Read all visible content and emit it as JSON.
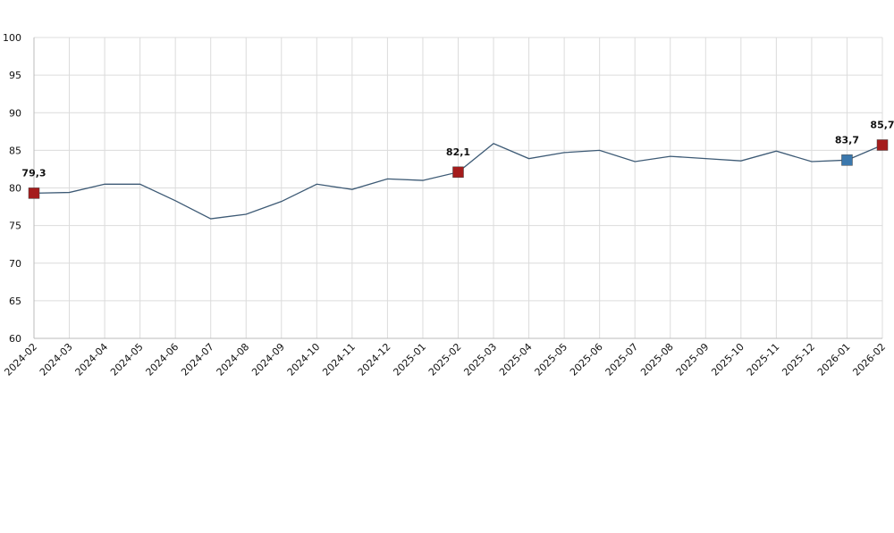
{
  "chart_data": {
    "type": "line",
    "categories": [
      "2024-02",
      "2024-03",
      "2024-04",
      "2024-05",
      "2024-06",
      "2024-07",
      "2024-08",
      "2024-09",
      "2024-10",
      "2024-11",
      "2024-12",
      "2025-01",
      "2025-02",
      "2025-03",
      "2025-04",
      "2025-05",
      "2025-06",
      "2025-07",
      "2025-08",
      "2025-09",
      "2025-10",
      "2025-11",
      "2025-12",
      "2026-01",
      "2026-02"
    ],
    "series": [
      {
        "color": "#3d5a75",
        "values": [
          79.3,
          79.4,
          80.5,
          80.5,
          78.3,
          75.9,
          76.5,
          78.2,
          80.5,
          79.8,
          81.2,
          81.0,
          82.1,
          85.9,
          83.9,
          84.7,
          85.0,
          83.5,
          84.2,
          83.9,
          83.6,
          84.9,
          83.5,
          83.7,
          85.7
        ],
        "value_labels": [
          "79,3",
          null,
          null,
          null,
          null,
          null,
          null,
          null,
          null,
          null,
          null,
          null,
          "82,1",
          null,
          null,
          null,
          null,
          null,
          null,
          null,
          null,
          null,
          null,
          "83,7",
          "85,7"
        ],
        "marker_colors": [
          "#a51c1c",
          null,
          null,
          null,
          null,
          null,
          null,
          null,
          null,
          null,
          null,
          null,
          "#a51c1c",
          null,
          null,
          null,
          null,
          null,
          null,
          null,
          null,
          null,
          null,
          "#3b78ad",
          "#a51c1c"
        ]
      }
    ],
    "ylim": [
      60,
      100
    ],
    "yticks": [
      60,
      65,
      70,
      75,
      80,
      85,
      90,
      95,
      100
    ],
    "grid": true
  }
}
